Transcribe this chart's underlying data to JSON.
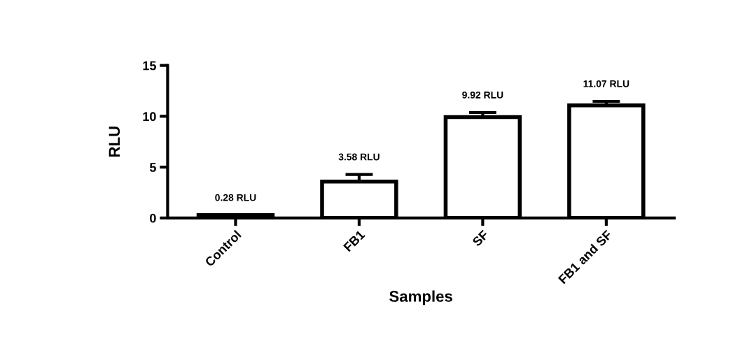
{
  "chart_data": {
    "type": "bar",
    "xlabel": "Samples",
    "ylabel": "RLU",
    "categories": [
      "Control",
      "FB1",
      "SF",
      "FB1 and SF"
    ],
    "values": [
      0.28,
      3.58,
      9.92,
      11.07
    ],
    "errors": [
      null,
      [
        3.58,
        4.28
      ],
      [
        9.92,
        10.37
      ],
      [
        11.07,
        11.47
      ]
    ],
    "value_labels": [
      "0.28 RLU",
      "3.58 RLU",
      "9.92 RLU",
      "11.07 RLU"
    ],
    "color": "#ffffff",
    "ylim": [
      0,
      15
    ],
    "yticks": [
      0,
      5,
      10,
      15
    ],
    "grid": false
  }
}
